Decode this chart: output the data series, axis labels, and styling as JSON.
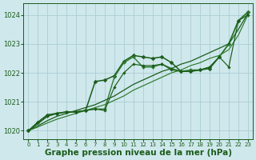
{
  "background_color": "#cfe8ec",
  "grid_color": "#aacdd4",
  "line_color_dark": "#1a5c1a",
  "line_color_mid": "#2d7a2d",
  "xlabel": "Graphe pression niveau de la mer (hPa)",
  "xlabel_fontsize": 7.5,
  "xlim": [
    -0.5,
    23.5
  ],
  "ylim": [
    1019.7,
    1024.4
  ],
  "yticks": [
    1020,
    1021,
    1022,
    1023,
    1024
  ],
  "xticks": [
    0,
    1,
    2,
    3,
    4,
    5,
    6,
    7,
    8,
    9,
    10,
    11,
    12,
    13,
    14,
    15,
    16,
    17,
    18,
    19,
    20,
    21,
    22,
    23
  ],
  "series": [
    {
      "x": [
        0,
        1,
        2,
        3,
        4,
        5,
        6,
        7,
        8,
        9,
        10,
        11,
        12,
        13,
        14,
        15,
        16,
        17,
        18,
        19,
        20,
        21,
        22,
        23
      ],
      "y": [
        1020.0,
        1020.3,
        1020.55,
        1020.6,
        1020.65,
        1020.65,
        1020.7,
        1021.7,
        1021.75,
        1021.9,
        1022.4,
        1022.6,
        1022.55,
        1022.5,
        1022.55,
        1022.35,
        1022.05,
        1022.05,
        1022.1,
        1022.15,
        1022.55,
        1023.0,
        1023.8,
        1024.1
      ],
      "color": "#1a5c1a",
      "lw": 1.1,
      "marker": "D",
      "ms": 2.5
    },
    {
      "x": [
        0,
        2,
        3,
        4,
        5,
        6,
        7,
        8,
        9,
        10,
        11,
        12,
        13,
        14,
        15,
        16,
        17,
        18,
        19,
        20,
        21,
        22,
        23
      ],
      "y": [
        1020.0,
        1020.5,
        1020.6,
        1020.65,
        1020.65,
        1020.7,
        1020.75,
        1020.75,
        1021.85,
        1022.35,
        1022.55,
        1022.2,
        1022.2,
        1022.3,
        1022.1,
        1022.05,
        1022.1,
        1022.1,
        1022.2,
        1022.55,
        1023.0,
        1023.8,
        1024.1
      ],
      "color": "#2d7a2d",
      "lw": 1.0,
      "marker": "D",
      "ms": 2.0
    },
    {
      "x": [
        0,
        1,
        2,
        3,
        4,
        5,
        6,
        7,
        8,
        9,
        10,
        11,
        12,
        13,
        14,
        15,
        16,
        17,
        18,
        19,
        20,
        21,
        22,
        23
      ],
      "y": [
        1020.0,
        1020.17,
        1020.35,
        1020.5,
        1020.6,
        1020.7,
        1020.8,
        1020.9,
        1021.05,
        1021.2,
        1021.4,
        1021.6,
        1021.75,
        1021.9,
        1022.05,
        1022.15,
        1022.3,
        1022.4,
        1022.55,
        1022.7,
        1022.85,
        1023.0,
        1023.5,
        1024.05
      ],
      "color": "#1a5c1a",
      "lw": 0.9,
      "marker": null,
      "ms": 0
    },
    {
      "x": [
        0,
        1,
        2,
        3,
        4,
        5,
        6,
        7,
        8,
        9,
        10,
        11,
        12,
        13,
        14,
        15,
        16,
        17,
        18,
        19,
        20,
        21,
        22,
        23
      ],
      "y": [
        1020.0,
        1020.13,
        1020.27,
        1020.4,
        1020.5,
        1020.6,
        1020.7,
        1020.8,
        1020.9,
        1021.05,
        1021.2,
        1021.4,
        1021.55,
        1021.7,
        1021.85,
        1022.0,
        1022.1,
        1022.25,
        1022.35,
        1022.5,
        1022.6,
        1022.8,
        1023.3,
        1024.0
      ],
      "color": "#2d7a2d",
      "lw": 0.85,
      "marker": null,
      "ms": 0
    },
    {
      "x": [
        0,
        2,
        3,
        4,
        5,
        6,
        7,
        8,
        9,
        10,
        11,
        12,
        13,
        14,
        15,
        16,
        17,
        18,
        19,
        20,
        21,
        22,
        23
      ],
      "y": [
        1020.0,
        1020.5,
        1020.6,
        1020.65,
        1020.65,
        1020.7,
        1020.75,
        1020.7,
        1021.5,
        1022.0,
        1022.3,
        1022.25,
        1022.25,
        1022.3,
        1022.15,
        1022.05,
        1022.05,
        1022.1,
        1022.2,
        1022.55,
        1022.2,
        1023.8,
        1024.0
      ],
      "color": "#1a5c1a",
      "lw": 0.85,
      "marker": "D",
      "ms": 1.8
    }
  ]
}
